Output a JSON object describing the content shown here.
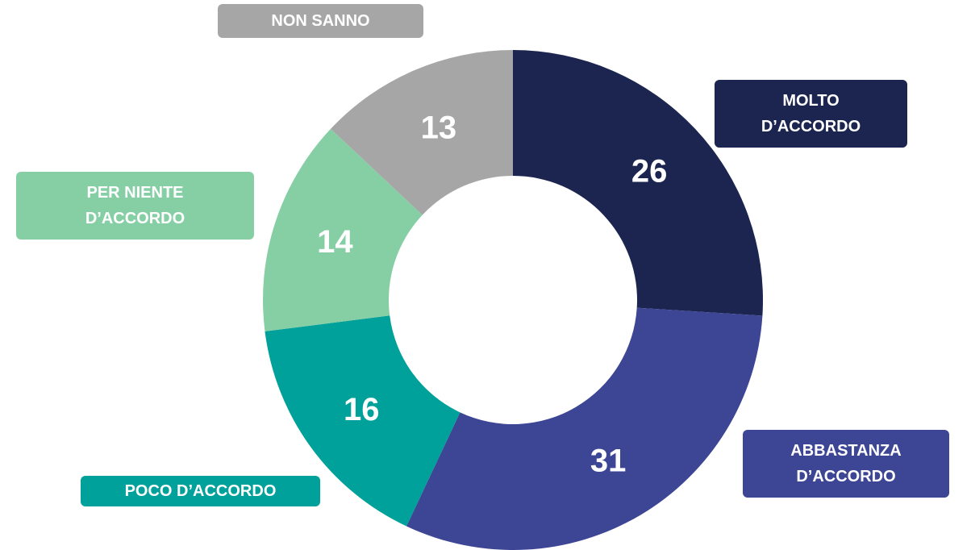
{
  "chart_data": {
    "type": "pie",
    "categories": [
      "MOLTO D’ACCORDO",
      "ABBASTANZA D’ACCORDO",
      "POCO D’ACCORDO",
      "PER NIENTE D’ACCORDO",
      "NON SANNO"
    ],
    "values": [
      26,
      31,
      16,
      14,
      13
    ],
    "colors": [
      "#1b2550",
      "#3d4595",
      "#00a19a",
      "#86cfa5",
      "#a6a6a6"
    ]
  }
}
